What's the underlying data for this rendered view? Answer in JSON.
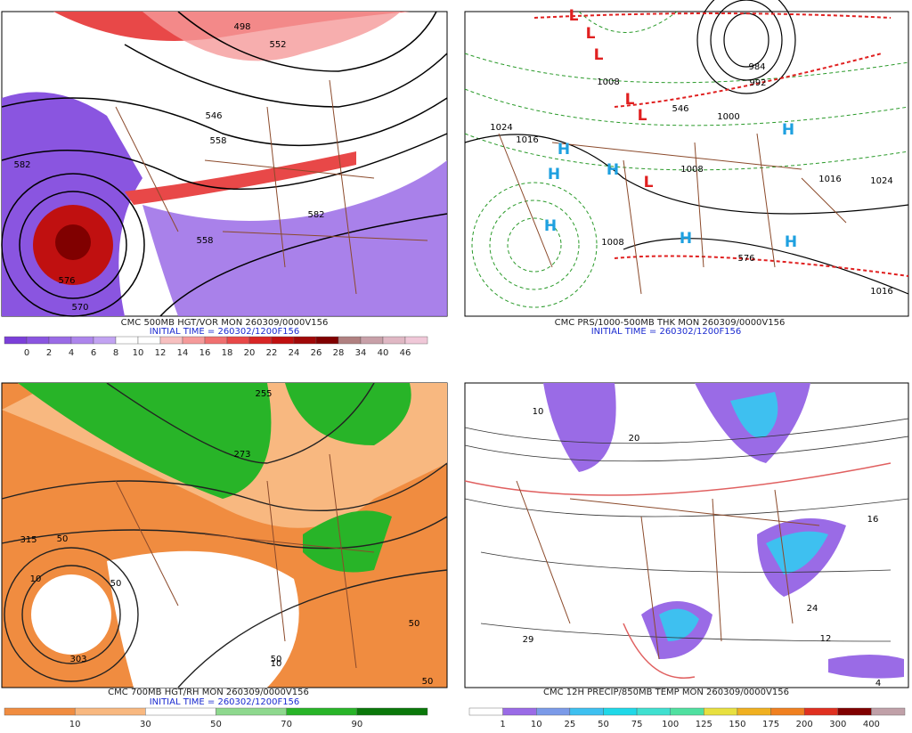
{
  "panels": [
    {
      "caption": "CMC 500MB HGT/VOR MON 260309/0000V156",
      "initial_time": "INITIAL TIME = 260302/1200F156",
      "colorbar": {
        "colors": [
          "#7b3fd9",
          "#8a55e0",
          "#9a6be6",
          "#ad85ec",
          "#c2a3f2",
          "#ffffff",
          "#ffffff",
          "#f7c0c0",
          "#f59a9a",
          "#f07070",
          "#e84848",
          "#d82626",
          "#c01010",
          "#a00808",
          "#800000",
          "#b08080",
          "#c8a0a8",
          "#e0b8c4",
          "#f0c8d8"
        ],
        "labels": [
          "0",
          "2",
          "4",
          "6",
          "8",
          "10",
          "12",
          "14",
          "16",
          "18",
          "20",
          "22",
          "24",
          "26",
          "28",
          "34",
          "40",
          "46"
        ]
      },
      "map_labels": [
        "498",
        "552",
        "546",
        "558",
        "582",
        "570",
        "576",
        "582",
        "558"
      ]
    },
    {
      "caption": "CMC PRS/1000-500MB THK MON 260309/0000V156",
      "initial_time": "INITIAL TIME = 260302/1200F156",
      "map_labels": [
        "1024",
        "1016",
        "1008",
        "1008",
        "1000",
        "992",
        "984",
        "1016",
        "1024",
        "1016",
        "1008",
        "576",
        "546",
        "H",
        "H",
        "H",
        "H",
        "H",
        "H",
        "H",
        "L",
        "L",
        "L",
        "L",
        "L",
        "L"
      ]
    },
    {
      "caption": "CMC 700MB HGT/RH MON 260309/0000V156",
      "initial_time": "INITIAL TIME = 260302/1200F156",
      "colorbar": {
        "colors": [
          "#f08c40",
          "#f8b880",
          "#ffffff",
          "#8ed88e",
          "#28b428",
          "#0a780a"
        ],
        "labels": [
          "10",
          "30",
          "50",
          "70",
          "90"
        ]
      },
      "map_labels": [
        "255",
        "273",
        "315",
        "50",
        "50",
        "10",
        "303",
        "50",
        "10",
        "50",
        "50"
      ]
    },
    {
      "caption": "CMC 12H PRECIP/850MB TEMP MON 260309/0000V156",
      "colorbar": {
        "colors": [
          "#ffffff",
          "#9a6be6",
          "#7b9ae8",
          "#3ec0f0",
          "#20d8e8",
          "#40e0d0",
          "#50e0a0",
          "#e8e040",
          "#f0b020",
          "#f08020",
          "#e03020",
          "#800000",
          "#c0a0a8"
        ],
        "labels": [
          "1",
          "10",
          "25",
          "50",
          "75",
          "100",
          "125",
          "150",
          "175",
          "200",
          "300",
          "400"
        ]
      },
      "map_labels": [
        "29",
        "16",
        "24",
        "12",
        "4",
        "10",
        "20"
      ]
    }
  ]
}
